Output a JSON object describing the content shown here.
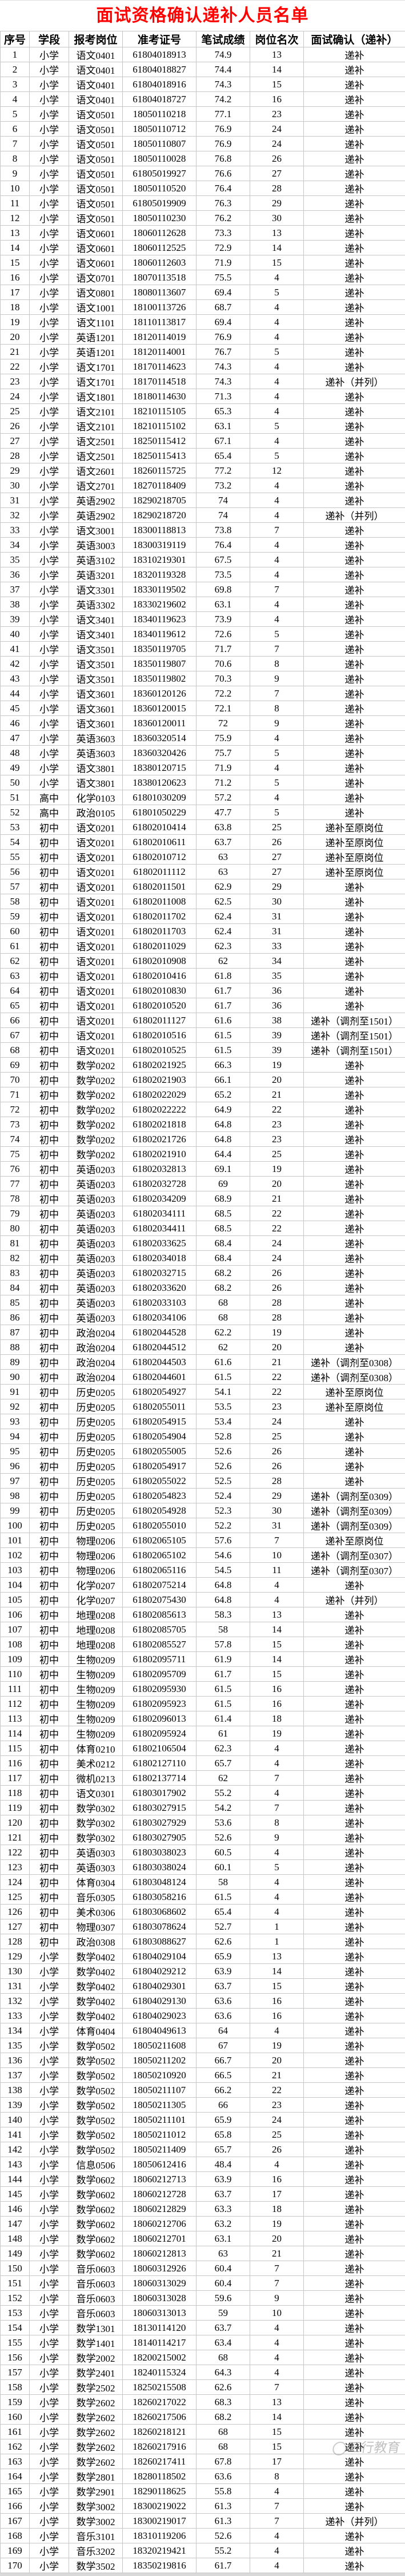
{
  "title": "面试资格确认递补人员名单",
  "title_color": "#FF0000",
  "watermark": "三行教育",
  "columns": [
    "序号",
    "学段",
    "报考岗位",
    "准考证号",
    "笔试成绩",
    "岗位名次",
    "面试确认（递补）"
  ],
  "rows": [
    [
      "1",
      "小学",
      "语文0401",
      "61804018913",
      "74.9",
      "13",
      "递补"
    ],
    [
      "2",
      "小学",
      "语文0401",
      "61804018827",
      "74.4",
      "14",
      "递补"
    ],
    [
      "3",
      "小学",
      "语文0401",
      "61804018916",
      "74.3",
      "15",
      "递补"
    ],
    [
      "4",
      "小学",
      "语文0401",
      "61804018727",
      "74.2",
      "16",
      "递补"
    ],
    [
      "5",
      "小学",
      "语文0501",
      "18050110218",
      "77.1",
      "23",
      "递补"
    ],
    [
      "6",
      "小学",
      "语文0501",
      "18050110712",
      "76.9",
      "24",
      "递补"
    ],
    [
      "7",
      "小学",
      "语文0501",
      "18050110807",
      "76.9",
      "24",
      "递补"
    ],
    [
      "8",
      "小学",
      "语文0501",
      "18050110028",
      "76.8",
      "26",
      "递补"
    ],
    [
      "9",
      "小学",
      "语文0501",
      "61805019927",
      "76.6",
      "27",
      "递补"
    ],
    [
      "10",
      "小学",
      "语文0501",
      "18050110520",
      "76.4",
      "28",
      "递补"
    ],
    [
      "11",
      "小学",
      "语文0501",
      "61805019909",
      "76.3",
      "29",
      "递补"
    ],
    [
      "12",
      "小学",
      "语文0501",
      "18050110230",
      "76.2",
      "30",
      "递补"
    ],
    [
      "13",
      "小学",
      "语文0601",
      "18060112628",
      "73.3",
      "13",
      "递补"
    ],
    [
      "14",
      "小学",
      "语文0601",
      "18060112525",
      "72.9",
      "14",
      "递补"
    ],
    [
      "15",
      "小学",
      "语文0601",
      "18060112603",
      "71.9",
      "15",
      "递补"
    ],
    [
      "16",
      "小学",
      "语文0701",
      "18070113518",
      "75.5",
      "4",
      "递补"
    ],
    [
      "17",
      "小学",
      "语文0801",
      "18080113607",
      "69.4",
      "5",
      "递补"
    ],
    [
      "18",
      "小学",
      "语文1001",
      "18100113726",
      "68.7",
      "4",
      "递补"
    ],
    [
      "19",
      "小学",
      "语文1101",
      "18110113817",
      "69.4",
      "4",
      "递补"
    ],
    [
      "20",
      "小学",
      "英语1201",
      "18120114019",
      "76.9",
      "4",
      "递补"
    ],
    [
      "21",
      "小学",
      "英语1201",
      "18120114001",
      "76.7",
      "5",
      "递补"
    ],
    [
      "22",
      "小学",
      "语文1701",
      "18170114623",
      "74.3",
      "4",
      "递补"
    ],
    [
      "23",
      "小学",
      "语文1701",
      "18170114518",
      "74.3",
      "4",
      "递补（并列）"
    ],
    [
      "24",
      "小学",
      "语文1801",
      "18180114630",
      "71.3",
      "4",
      "递补"
    ],
    [
      "25",
      "小学",
      "语文2101",
      "18210115105",
      "65.3",
      "4",
      "递补"
    ],
    [
      "26",
      "小学",
      "语文2101",
      "18210115102",
      "63.1",
      "5",
      "递补"
    ],
    [
      "27",
      "小学",
      "语文2501",
      "18250115412",
      "67.1",
      "4",
      "递补"
    ],
    [
      "28",
      "小学",
      "语文2501",
      "18250115413",
      "65.4",
      "5",
      "递补"
    ],
    [
      "29",
      "小学",
      "语文2601",
      "18260115725",
      "77.2",
      "12",
      "递补"
    ],
    [
      "30",
      "小学",
      "语文2701",
      "18270118409",
      "73.2",
      "4",
      "递补"
    ],
    [
      "31",
      "小学",
      "英语2902",
      "18290218705",
      "74",
      "4",
      "递补"
    ],
    [
      "32",
      "小学",
      "英语2902",
      "18290218720",
      "74",
      "4",
      "递补（并列）"
    ],
    [
      "33",
      "小学",
      "语文3001",
      "18300118813",
      "73.8",
      "7",
      "递补"
    ],
    [
      "34",
      "小学",
      "英语3003",
      "18300319119",
      "76.4",
      "4",
      "递补"
    ],
    [
      "35",
      "小学",
      "英语3102",
      "18310219301",
      "67.5",
      "4",
      "递补"
    ],
    [
      "36",
      "小学",
      "英语3201",
      "18320119328",
      "73.5",
      "4",
      "递补"
    ],
    [
      "37",
      "小学",
      "语文3301",
      "18330119502",
      "69.8",
      "7",
      "递补"
    ],
    [
      "38",
      "小学",
      "英语3302",
      "18330219602",
      "63.1",
      "4",
      "递补"
    ],
    [
      "39",
      "小学",
      "语文3401",
      "18340119623",
      "73.9",
      "4",
      "递补"
    ],
    [
      "40",
      "小学",
      "语文3401",
      "18340119612",
      "72.6",
      "5",
      "递补"
    ],
    [
      "41",
      "小学",
      "语文3501",
      "18350119705",
      "71.7",
      "7",
      "递补"
    ],
    [
      "42",
      "小学",
      "语文3501",
      "18350119807",
      "70.6",
      "8",
      "递补"
    ],
    [
      "43",
      "小学",
      "语文3501",
      "18350119802",
      "70.3",
      "9",
      "递补"
    ],
    [
      "44",
      "小学",
      "语文3601",
      "18360120126",
      "72.2",
      "7",
      "递补"
    ],
    [
      "45",
      "小学",
      "语文3601",
      "18360120015",
      "72.1",
      "8",
      "递补"
    ],
    [
      "46",
      "小学",
      "语文3601",
      "18360120011",
      "72",
      "9",
      "递补"
    ],
    [
      "47",
      "小学",
      "英语3603",
      "18360320514",
      "75.9",
      "4",
      "递补"
    ],
    [
      "48",
      "小学",
      "英语3603",
      "18360320426",
      "75.7",
      "5",
      "递补"
    ],
    [
      "49",
      "小学",
      "语文3801",
      "18380120715",
      "71.9",
      "4",
      "递补"
    ],
    [
      "50",
      "小学",
      "语文3801",
      "18380120623",
      "71.2",
      "5",
      "递补"
    ],
    [
      "51",
      "高中",
      "化学0103",
      "61801030209",
      "57.2",
      "4",
      "递补"
    ],
    [
      "52",
      "高中",
      "政治0105",
      "61801050229",
      "47.7",
      "5",
      "递补"
    ],
    [
      "53",
      "初中",
      "语文0201",
      "61802010414",
      "63.8",
      "25",
      "递补至原岗位"
    ],
    [
      "54",
      "初中",
      "语文0201",
      "61802010611",
      "63.7",
      "26",
      "递补至原岗位"
    ],
    [
      "55",
      "初中",
      "语文0201",
      "61802010712",
      "63",
      "27",
      "递补至原岗位"
    ],
    [
      "56",
      "初中",
      "语文0201",
      "61802011112",
      "63",
      "27",
      "递补至原岗位"
    ],
    [
      "57",
      "初中",
      "语文0201",
      "61802011501",
      "62.9",
      "29",
      "递补"
    ],
    [
      "58",
      "初中",
      "语文0201",
      "61802011008",
      "62.5",
      "30",
      "递补"
    ],
    [
      "59",
      "初中",
      "语文0201",
      "61802011702",
      "62.4",
      "31",
      "递补"
    ],
    [
      "60",
      "初中",
      "语文0201",
      "61802011703",
      "62.4",
      "31",
      "递补"
    ],
    [
      "61",
      "初中",
      "语文0201",
      "61802011029",
      "62.3",
      "33",
      "递补"
    ],
    [
      "62",
      "初中",
      "语文0201",
      "61802010908",
      "62",
      "34",
      "递补"
    ],
    [
      "63",
      "初中",
      "语文0201",
      "61802010416",
      "61.8",
      "35",
      "递补"
    ],
    [
      "64",
      "初中",
      "语文0201",
      "61802010830",
      "61.7",
      "36",
      "递补"
    ],
    [
      "65",
      "初中",
      "语文0201",
      "61802010520",
      "61.7",
      "36",
      "递补"
    ],
    [
      "66",
      "初中",
      "语文0201",
      "61802011127",
      "61.6",
      "38",
      "递补（调剂至1501）"
    ],
    [
      "67",
      "初中",
      "语文0201",
      "61802010516",
      "61.5",
      "39",
      "递补（调剂至1501）"
    ],
    [
      "68",
      "初中",
      "语文0201",
      "61802010525",
      "61.5",
      "39",
      "递补（调剂至1501）"
    ],
    [
      "69",
      "初中",
      "数学0202",
      "61802021925",
      "66.3",
      "19",
      "递补"
    ],
    [
      "70",
      "初中",
      "数学0202",
      "61802021903",
      "66.1",
      "20",
      "递补"
    ],
    [
      "71",
      "初中",
      "数学0202",
      "61802022029",
      "65.2",
      "21",
      "递补"
    ],
    [
      "72",
      "初中",
      "数学0202",
      "61802022222",
      "64.9",
      "22",
      "递补"
    ],
    [
      "73",
      "初中",
      "数学0202",
      "61802021818",
      "64.8",
      "23",
      "递补"
    ],
    [
      "74",
      "初中",
      "数学0202",
      "61802021726",
      "64.8",
      "23",
      "递补"
    ],
    [
      "75",
      "初中",
      "数学0202",
      "61802021910",
      "64.4",
      "25",
      "递补"
    ],
    [
      "76",
      "初中",
      "英语0203",
      "61802032813",
      "69.1",
      "19",
      "递补"
    ],
    [
      "77",
      "初中",
      "英语0203",
      "61802032728",
      "69",
      "20",
      "递补"
    ],
    [
      "78",
      "初中",
      "英语0203",
      "61802034209",
      "68.9",
      "21",
      "递补"
    ],
    [
      "79",
      "初中",
      "英语0203",
      "61802034111",
      "68.5",
      "22",
      "递补"
    ],
    [
      "80",
      "初中",
      "英语0203",
      "61802034411",
      "68.5",
      "22",
      "递补"
    ],
    [
      "81",
      "初中",
      "英语0203",
      "61802033625",
      "68.4",
      "24",
      "递补"
    ],
    [
      "82",
      "初中",
      "英语0203",
      "61802034018",
      "68.4",
      "24",
      "递补"
    ],
    [
      "83",
      "初中",
      "英语0203",
      "61802032715",
      "68.2",
      "26",
      "递补"
    ],
    [
      "84",
      "初中",
      "英语0203",
      "61802033620",
      "68.2",
      "26",
      "递补"
    ],
    [
      "85",
      "初中",
      "英语0203",
      "61802033103",
      "68",
      "28",
      "递补"
    ],
    [
      "86",
      "初中",
      "英语0203",
      "61802034106",
      "68",
      "28",
      "递补"
    ],
    [
      "87",
      "初中",
      "政治0204",
      "61802044528",
      "62.2",
      "19",
      "递补"
    ],
    [
      "88",
      "初中",
      "政治0204",
      "61802044512",
      "62",
      "20",
      "递补"
    ],
    [
      "89",
      "初中",
      "政治0204",
      "61802044503",
      "61.6",
      "21",
      "递补（调剂至0308）"
    ],
    [
      "90",
      "初中",
      "政治0204",
      "61802044601",
      "61.5",
      "22",
      "递补（调剂至0308）"
    ],
    [
      "91",
      "初中",
      "历史0205",
      "61802054927",
      "54.1",
      "22",
      "递补至原岗位"
    ],
    [
      "92",
      "初中",
      "历史0205",
      "61802055011",
      "53.5",
      "23",
      "递补至原岗位"
    ],
    [
      "93",
      "初中",
      "历史0205",
      "61802054915",
      "53.4",
      "24",
      "递补"
    ],
    [
      "94",
      "初中",
      "历史0205",
      "61802054904",
      "52.8",
      "25",
      "递补"
    ],
    [
      "95",
      "初中",
      "历史0205",
      "61802055005",
      "52.6",
      "26",
      "递补"
    ],
    [
      "96",
      "初中",
      "历史0205",
      "61802054917",
      "52.6",
      "26",
      "递补"
    ],
    [
      "97",
      "初中",
      "历史0205",
      "61802055022",
      "52.5",
      "28",
      "递补"
    ],
    [
      "98",
      "初中",
      "历史0205",
      "61802054823",
      "52.4",
      "29",
      "递补（调剂至0309）"
    ],
    [
      "99",
      "初中",
      "历史0205",
      "61802054928",
      "52.3",
      "30",
      "递补（调剂至0309）"
    ],
    [
      "100",
      "初中",
      "历史0205",
      "61802055010",
      "52.2",
      "31",
      "递补（调剂至0309）"
    ],
    [
      "101",
      "初中",
      "物理0206",
      "61802065105",
      "57.6",
      "7",
      "递补至原岗位"
    ],
    [
      "102",
      "初中",
      "物理0206",
      "61802065102",
      "54.6",
      "10",
      "递补（调剂至0307）"
    ],
    [
      "103",
      "初中",
      "物理0206",
      "61802065116",
      "54.5",
      "11",
      "递补（调剂至0307）"
    ],
    [
      "104",
      "初中",
      "化学0207",
      "61802075214",
      "64.8",
      "4",
      "递补"
    ],
    [
      "105",
      "初中",
      "化学0207",
      "61802075430",
      "64.8",
      "4",
      "递补（并列）"
    ],
    [
      "106",
      "初中",
      "地理0208",
      "61802085613",
      "58.3",
      "13",
      "递补"
    ],
    [
      "107",
      "初中",
      "地理0208",
      "61802085705",
      "58",
      "14",
      "递补"
    ],
    [
      "108",
      "初中",
      "地理0208",
      "61802085527",
      "57.8",
      "15",
      "递补"
    ],
    [
      "109",
      "初中",
      "生物0209",
      "61802095711",
      "61.9",
      "14",
      "递补"
    ],
    [
      "110",
      "初中",
      "生物0209",
      "61802095709",
      "61.7",
      "15",
      "递补"
    ],
    [
      "111",
      "初中",
      "生物0209",
      "61802095930",
      "61.5",
      "16",
      "递补"
    ],
    [
      "112",
      "初中",
      "生物0209",
      "61802095923",
      "61.5",
      "16",
      "递补"
    ],
    [
      "113",
      "初中",
      "生物0209",
      "61802096013",
      "61.4",
      "18",
      "递补"
    ],
    [
      "114",
      "初中",
      "生物0209",
      "61802095924",
      "61",
      "19",
      "递补"
    ],
    [
      "115",
      "初中",
      "体育0210",
      "61802106504",
      "62.3",
      "4",
      "递补"
    ],
    [
      "116",
      "初中",
      "美术0212",
      "61802127110",
      "65.7",
      "4",
      "递补"
    ],
    [
      "117",
      "初中",
      "微机0213",
      "61802137714",
      "62",
      "7",
      "递补"
    ],
    [
      "118",
      "初中",
      "语文0301",
      "61803017902",
      "55.2",
      "4",
      "递补"
    ],
    [
      "119",
      "初中",
      "数学0302",
      "61803027915",
      "54.2",
      "7",
      "递补"
    ],
    [
      "120",
      "初中",
      "数学0302",
      "61803027929",
      "53.6",
      "8",
      "递补"
    ],
    [
      "121",
      "初中",
      "数学0302",
      "61803027905",
      "52.6",
      "9",
      "递补"
    ],
    [
      "122",
      "初中",
      "英语0303",
      "61803038023",
      "60.5",
      "4",
      "递补"
    ],
    [
      "123",
      "初中",
      "英语0303",
      "61803038024",
      "60.1",
      "5",
      "递补"
    ],
    [
      "124",
      "初中",
      "体育0304",
      "61803048124",
      "58",
      "4",
      "递补"
    ],
    [
      "125",
      "初中",
      "音乐0305",
      "61803058216",
      "61.5",
      "4",
      "递补"
    ],
    [
      "126",
      "初中",
      "美术0306",
      "61803068602",
      "65.4",
      "4",
      "递补"
    ],
    [
      "127",
      "初中",
      "物理0307",
      "61803078624",
      "52.7",
      "1",
      "递补"
    ],
    [
      "128",
      "初中",
      "政治0308",
      "61803088627",
      "62.6",
      "1",
      "递补"
    ],
    [
      "129",
      "小学",
      "数学0402",
      "61804029104",
      "65.9",
      "13",
      "递补"
    ],
    [
      "130",
      "小学",
      "数学0402",
      "61804029212",
      "63.9",
      "14",
      "递补"
    ],
    [
      "131",
      "小学",
      "数学0402",
      "61804029301",
      "63.7",
      "15",
      "递补"
    ],
    [
      "132",
      "小学",
      "数学0402",
      "61804029130",
      "63.6",
      "16",
      "递补"
    ],
    [
      "133",
      "小学",
      "数学0402",
      "61804029023",
      "63.6",
      "16",
      "递补"
    ],
    [
      "134",
      "小学",
      "体育0404",
      "61804049613",
      "64",
      "4",
      "递补"
    ],
    [
      "135",
      "小学",
      "数学0502",
      "18050211608",
      "67",
      "19",
      "递补"
    ],
    [
      "136",
      "小学",
      "数学0502",
      "18050211202",
      "66.7",
      "20",
      "递补"
    ],
    [
      "137",
      "小学",
      "数学0502",
      "18050210920",
      "66.5",
      "21",
      "递补"
    ],
    [
      "138",
      "小学",
      "数学0502",
      "18050211107",
      "66.2",
      "22",
      "递补"
    ],
    [
      "139",
      "小学",
      "数学0502",
      "18050211305",
      "66",
      "23",
      "递补"
    ],
    [
      "140",
      "小学",
      "数学0502",
      "18050211101",
      "65.9",
      "24",
      "递补"
    ],
    [
      "141",
      "小学",
      "数学0502",
      "18050211012",
      "65.8",
      "25",
      "递补"
    ],
    [
      "142",
      "小学",
      "数学0502",
      "18050211409",
      "65.7",
      "26",
      "递补"
    ],
    [
      "143",
      "小学",
      "信息0506",
      "18050612416",
      "48.4",
      "4",
      "递补"
    ],
    [
      "144",
      "小学",
      "数学0602",
      "18060212713",
      "63.9",
      "16",
      "递补"
    ],
    [
      "145",
      "小学",
      "数学0602",
      "18060212728",
      "63.7",
      "17",
      "递补"
    ],
    [
      "146",
      "小学",
      "数学0602",
      "18060212829",
      "63.3",
      "18",
      "递补"
    ],
    [
      "147",
      "小学",
      "数学0602",
      "18060212706",
      "63.2",
      "19",
      "递补"
    ],
    [
      "148",
      "小学",
      "数学0602",
      "18060212701",
      "63.1",
      "20",
      "递补"
    ],
    [
      "149",
      "小学",
      "数学0602",
      "18060212813",
      "63",
      "21",
      "递补"
    ],
    [
      "150",
      "小学",
      "音乐0603",
      "18060312926",
      "60.4",
      "7",
      "递补"
    ],
    [
      "151",
      "小学",
      "音乐0603",
      "18060313029",
      "60.4",
      "7",
      "递补"
    ],
    [
      "152",
      "小学",
      "音乐0603",
      "18060313028",
      "59.6",
      "9",
      "递补"
    ],
    [
      "153",
      "小学",
      "音乐0603",
      "18060313013",
      "59",
      "10",
      "递补"
    ],
    [
      "154",
      "小学",
      "数学1301",
      "18130114120",
      "63.7",
      "4",
      "递补"
    ],
    [
      "155",
      "小学",
      "数学1401",
      "18140114217",
      "63.4",
      "4",
      "递补"
    ],
    [
      "156",
      "小学",
      "数学2002",
      "18200215002",
      "68",
      "4",
      "递补"
    ],
    [
      "157",
      "小学",
      "数学2401",
      "18240115324",
      "64.3",
      "4",
      "递补"
    ],
    [
      "158",
      "小学",
      "数学2502",
      "18250215508",
      "62.6",
      "7",
      "递补"
    ],
    [
      "159",
      "小学",
      "数学2602",
      "18260217022",
      "68.3",
      "13",
      "递补"
    ],
    [
      "160",
      "小学",
      "数学2602",
      "18260217506",
      "68.2",
      "14",
      "递补"
    ],
    [
      "161",
      "小学",
      "数学2602",
      "18260218121",
      "68",
      "15",
      "递补"
    ],
    [
      "162",
      "小学",
      "数学2602",
      "18260217916",
      "68",
      "15",
      "递补"
    ],
    [
      "163",
      "小学",
      "数学2602",
      "18260217411",
      "67.8",
      "17",
      "递补"
    ],
    [
      "164",
      "小学",
      "数学2801",
      "18280118502",
      "63.6",
      "8",
      "递补"
    ],
    [
      "165",
      "小学",
      "数学2901",
      "18290118625",
      "55.8",
      "4",
      "递补"
    ],
    [
      "166",
      "小学",
      "数学3002",
      "18300219022",
      "61.3",
      "7",
      "递补"
    ],
    [
      "167",
      "小学",
      "数学3002",
      "18300219017",
      "61.3",
      "7",
      "递补（并列）"
    ],
    [
      "168",
      "小学",
      "音乐3101",
      "18310119206",
      "52.6",
      "4",
      "递补"
    ],
    [
      "169",
      "小学",
      "音乐3202",
      "18320219421",
      "55.2",
      "4",
      "递补"
    ],
    [
      "170",
      "小学",
      "数学3502",
      "18350219816",
      "61.7",
      "4",
      "递补"
    ]
  ]
}
